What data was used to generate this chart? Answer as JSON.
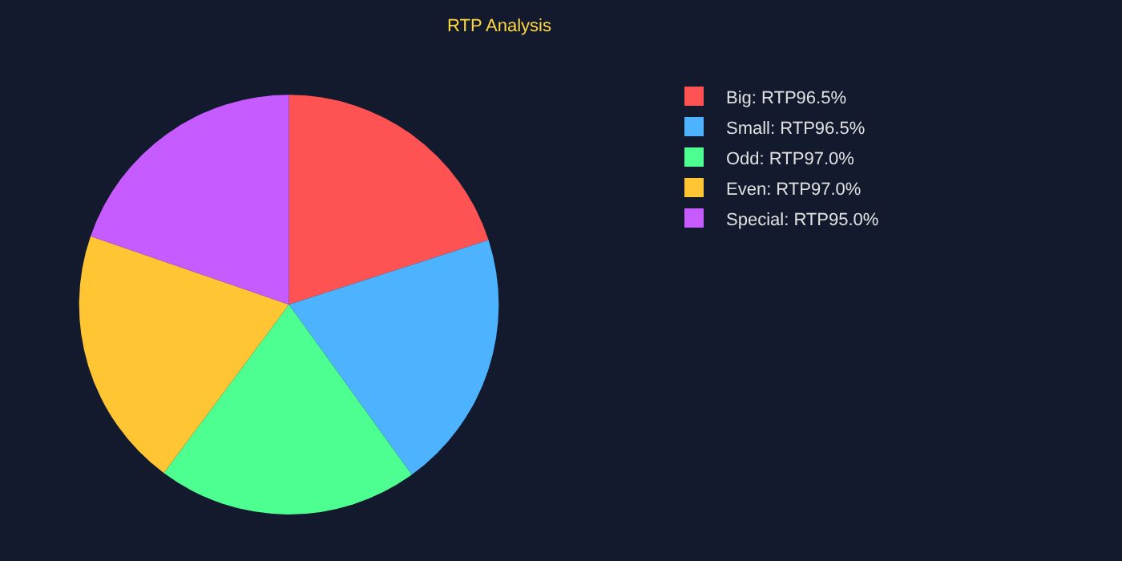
{
  "chart_data": {
    "type": "pie",
    "title": "RTP Analysis",
    "categories": [
      "Big: RTP96.5%",
      "Small: RTP96.5%",
      "Odd: RTP97.0%",
      "Even: RTP97.0%",
      "Special: RTP95.0%"
    ],
    "values": [
      96.5,
      96.5,
      97.0,
      97.0,
      95.0
    ],
    "colors": [
      "#ff5252",
      "#4db3ff",
      "#4dff91",
      "#ffc533",
      "#c65cff"
    ],
    "legend": "right"
  }
}
